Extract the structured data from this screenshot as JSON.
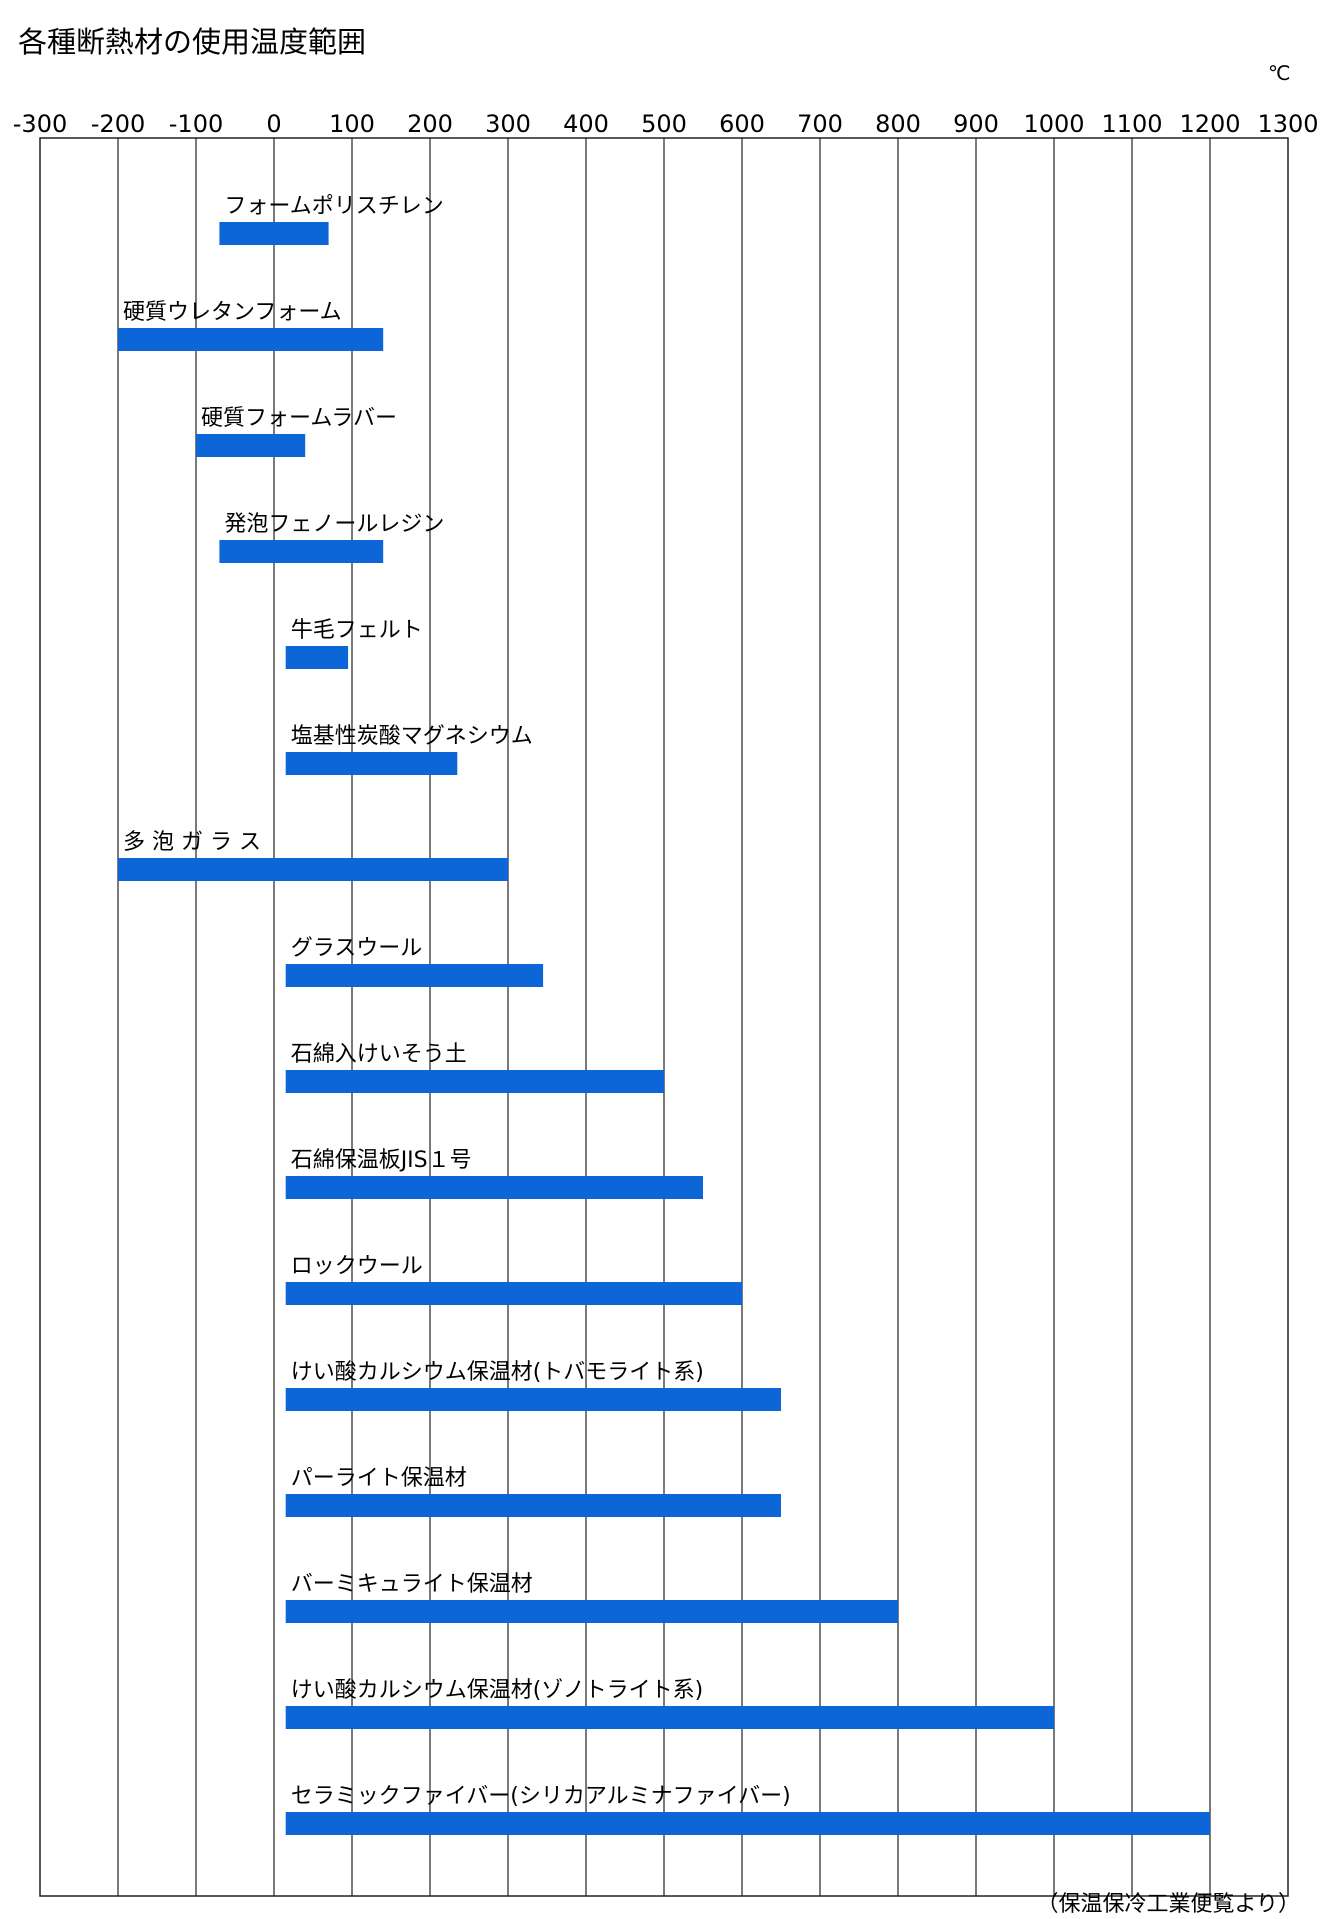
{
  "chart_data": {
    "type": "bar",
    "orientation": "horizontal-range",
    "title": "各種断熱材の使用温度範囲",
    "unit": "℃",
    "xlim": [
      -300,
      1300
    ],
    "x_ticks": [
      "-300",
      "-200",
      "-100",
      "0",
      "100",
      "200",
      "300",
      "400",
      "500",
      "600",
      "700",
      "800",
      "900",
      "1000",
      "1100",
      "1200",
      "1300"
    ],
    "grid": true,
    "bar_color": "#0c66d8",
    "source": "（保温保冷工業便覧より）",
    "series": [
      {
        "label": "フォームポリスチレン",
        "min": -70,
        "max": 70
      },
      {
        "label": "硬質ウレタンフォーム",
        "min": -200,
        "max": 140
      },
      {
        "label": "硬質フォームラバー",
        "min": -100,
        "max": 40
      },
      {
        "label": "発泡フェノールレジン",
        "min": -70,
        "max": 140
      },
      {
        "label": "牛毛フェルト",
        "min": 15,
        "max": 95
      },
      {
        "label": "塩基性炭酸マグネシウム",
        "min": 15,
        "max": 235
      },
      {
        "label": "多 泡 ガ ラ ス",
        "min": -200,
        "max": 300
      },
      {
        "label": "グラスウール",
        "min": 15,
        "max": 345
      },
      {
        "label": "石綿入けいそう土",
        "min": 15,
        "max": 500
      },
      {
        "label": "石綿保温板JIS１号",
        "min": 15,
        "max": 550
      },
      {
        "label": "ロックウール",
        "min": 15,
        "max": 600
      },
      {
        "label": "けい酸カルシウム保温材(トバモライト系)",
        "min": 15,
        "max": 650
      },
      {
        "label": "パーライト保温材",
        "min": 15,
        "max": 650
      },
      {
        "label": "バーミキュライト保温材",
        "min": 15,
        "max": 800
      },
      {
        "label": "けい酸カルシウム保温材(ゾノトライト系)",
        "min": 15,
        "max": 1000
      },
      {
        "label": "セラミックファイバー(シリカアルミナファイバー)",
        "min": 15,
        "max": 1200
      }
    ]
  }
}
